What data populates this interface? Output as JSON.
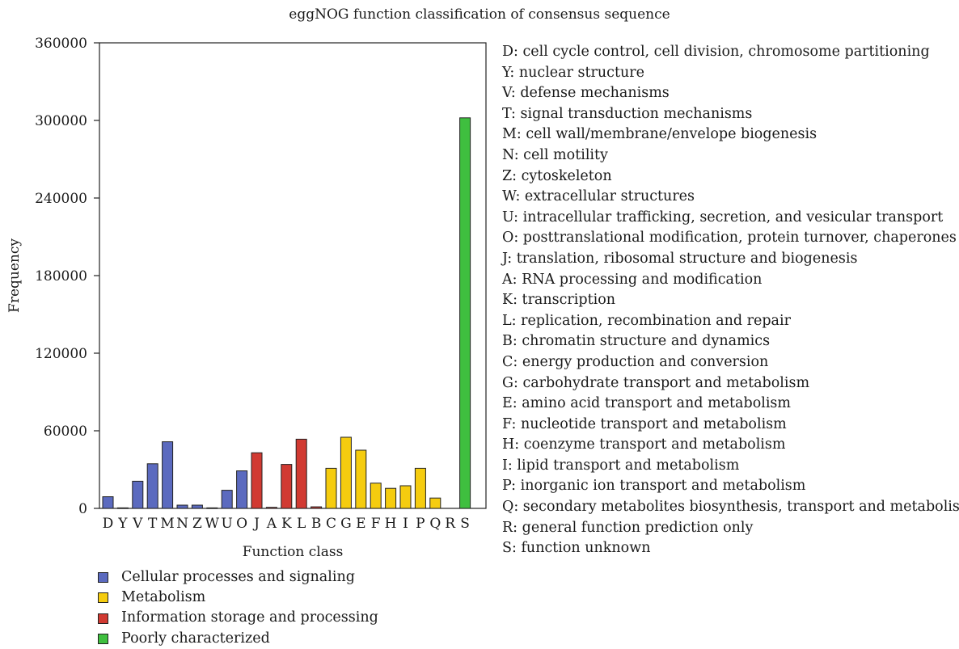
{
  "chart_data": {
    "type": "bar",
    "title": "eggNOG function classification of consensus sequence",
    "xlabel": "Function class",
    "ylabel": "Frequency",
    "ylim": [
      0,
      360000
    ],
    "yticks": [
      "0",
      "60000",
      "120000",
      "180000",
      "240000",
      "300000",
      "360000"
    ],
    "categories": [
      "D",
      "Y",
      "V",
      "T",
      "M",
      "N",
      "Z",
      "W",
      "U",
      "O",
      "J",
      "A",
      "K",
      "L",
      "B",
      "C",
      "G",
      "E",
      "F",
      "H",
      "I",
      "P",
      "Q",
      "R",
      "S"
    ],
    "values": [
      9000,
      400,
      21000,
      34500,
      51500,
      2500,
      2500,
      400,
      14000,
      29000,
      43000,
      800,
      34000,
      53500,
      1200,
      31000,
      55000,
      45000,
      19500,
      15500,
      17500,
      31000,
      8000,
      0,
      302000
    ],
    "groups": [
      "cellular",
      "cellular",
      "cellular",
      "cellular",
      "cellular",
      "cellular",
      "cellular",
      "cellular",
      "cellular",
      "cellular",
      "info",
      "info",
      "info",
      "info",
      "info",
      "metabolism",
      "metabolism",
      "metabolism",
      "metabolism",
      "metabolism",
      "metabolism",
      "metabolism",
      "metabolism",
      "poor",
      "poor"
    ],
    "group_colors": {
      "cellular": "#5b6abf",
      "metabolism": "#f5cc0f",
      "info": "#d13a32",
      "poor": "#3fbf3f"
    },
    "legend": [
      {
        "group": "cellular",
        "label": "Cellular processes and signaling"
      },
      {
        "group": "metabolism",
        "label": "Metabolism"
      },
      {
        "group": "info",
        "label": "Information storage and processing"
      },
      {
        "group": "poor",
        "label": "Poorly characterized"
      }
    ],
    "legend_position": "bottom-left",
    "grid": false,
    "descriptions": [
      "D: cell cycle control, cell division, chromosome partitioning",
      "Y: nuclear structure",
      "V: defense mechanisms",
      "T: signal transduction mechanisms",
      "M: cell wall/membrane/envelope biogenesis",
      "N: cell motility",
      "Z: cytoskeleton",
      "W: extracellular structures",
      "U: intracellular trafficking, secretion, and vesicular transport",
      "O: posttranslational modification, protein turnover, chaperones",
      "J: translation, ribosomal structure and biogenesis",
      "A: RNA processing and modification",
      "K: transcription",
      "L: replication, recombination and repair",
      "B: chromatin structure and dynamics",
      "C: energy production and conversion",
      "G: carbohydrate transport and metabolism",
      "E: amino acid transport and metabolism",
      "F: nucleotide transport and metabolism",
      "H: coenzyme transport and metabolism",
      "I: lipid transport and metabolism",
      "P: inorganic ion transport and metabolism",
      "Q: secondary metabolites biosynthesis, transport and metabolism",
      "R: general function prediction only",
      "S: function unknown"
    ]
  }
}
